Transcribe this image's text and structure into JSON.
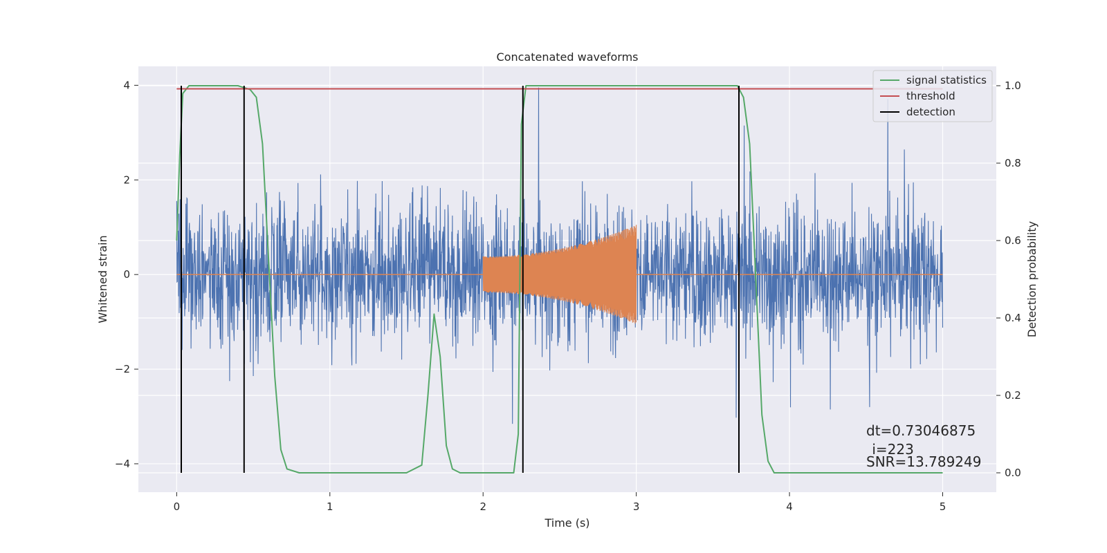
{
  "chart_data": {
    "type": "line",
    "title": "Concatenated waveforms",
    "xlabel": "Time (s)",
    "ylabel_left": "Whitened strain",
    "ylabel_right": "Detection probability",
    "xlim": [
      -0.25,
      5.35
    ],
    "ylim_left": [
      -4.6,
      4.4
    ],
    "ylim_right": [
      -0.05,
      1.05
    ],
    "xticks": [
      "0",
      "1",
      "2",
      "3",
      "4",
      "5"
    ],
    "yticks_left": [
      "−4",
      "−2",
      "0",
      "2",
      "4"
    ],
    "yticks_right": [
      "0.0",
      "0.2",
      "0.4",
      "0.6",
      "0.8",
      "1.0"
    ],
    "grid": true,
    "legend_position": "top-right",
    "legend": [
      "signal statistics",
      "threshold",
      "detection"
    ],
    "colors": {
      "strain": "#4c72b0",
      "injection": "#dd8452",
      "signal_statistics": "#55a868",
      "threshold": "#c44e52",
      "detection": "#000000",
      "background": "#eaeaf2"
    },
    "series": [
      {
        "name": "Whitened strain (noise)",
        "axis": "left",
        "x_range": [
          0,
          5
        ],
        "amplitude": "typically within ±1.5, peaks up to about ±3.9"
      },
      {
        "name": "injected chirp",
        "axis": "left",
        "x_range": [
          2.0,
          3.0
        ],
        "envelope_start": 0.38,
        "envelope_end": 1.05
      },
      {
        "name": "signal statistics",
        "axis": "right",
        "x": [
          0.0,
          0.02,
          0.04,
          0.08,
          0.15,
          0.4,
          0.48,
          0.52,
          0.56,
          0.6,
          0.64,
          0.68,
          0.72,
          0.8,
          1.0,
          1.5,
          1.6,
          1.64,
          1.68,
          1.72,
          1.76,
          1.8,
          1.85,
          2.0,
          2.2,
          2.23,
          2.25,
          2.28,
          2.35,
          3.0,
          3.66,
          3.7,
          3.74,
          3.78,
          3.82,
          3.86,
          3.9,
          4.2,
          5.0
        ],
        "y": [
          0.6,
          0.82,
          0.98,
          1.0,
          1.0,
          1.0,
          0.99,
          0.97,
          0.85,
          0.55,
          0.25,
          0.06,
          0.01,
          0.0,
          0.0,
          0.0,
          0.02,
          0.2,
          0.41,
          0.3,
          0.07,
          0.01,
          0.0,
          0.0,
          0.0,
          0.1,
          0.9,
          1.0,
          1.0,
          1.0,
          1.0,
          0.97,
          0.85,
          0.5,
          0.15,
          0.03,
          0.0,
          0.0,
          0.0
        ]
      },
      {
        "name": "threshold",
        "axis": "right",
        "x": [
          0,
          5
        ],
        "y": [
          0.992,
          0.992
        ]
      }
    ],
    "detections": [
      0.03,
      0.44,
      2.26,
      3.67
    ],
    "annotations": [
      "dt=0.73046875",
      " i=223",
      "SNR=13.789249"
    ]
  }
}
